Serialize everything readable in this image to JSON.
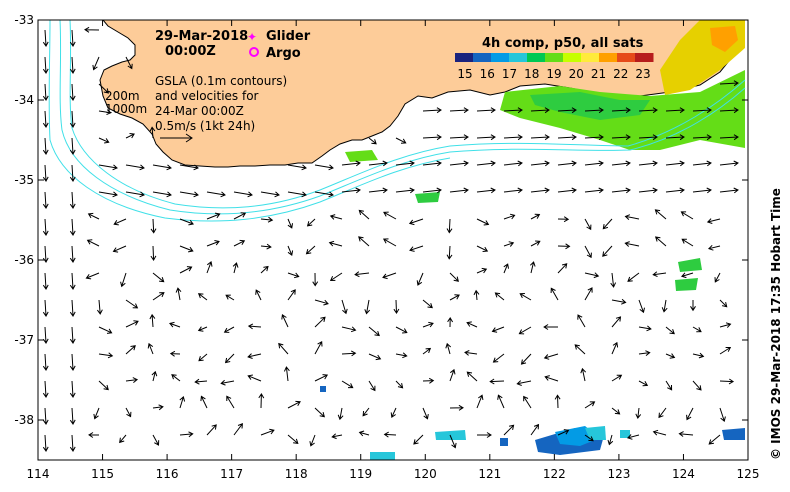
{
  "title": {
    "date": "29-Mar-2018",
    "time": "00:00Z"
  },
  "legend": {
    "glider_label": "Glider",
    "argo_label": "Argo",
    "glider_color": "#ff00ff",
    "argo_color": "#ff00ff"
  },
  "info": {
    "line1": "GSLA (0.1m contours)",
    "line2": "and velocities for",
    "line3": "24-Mar 00:00Z",
    "line4": "0.5m/s (1kt 24h)"
  },
  "depth_labels": {
    "d200": "200m",
    "d1000": "1000m"
  },
  "colorbar": {
    "title": "4h comp, p50, all sats",
    "ticks": [
      "15",
      "16",
      "17",
      "18",
      "19",
      "20",
      "21",
      "22",
      "23"
    ],
    "colors": [
      "#1a237e",
      "#1565c0",
      "#039be5",
      "#26c6da",
      "#00c853",
      "#64dd17",
      "#c6ff00",
      "#ffeb3b",
      "#ffa000",
      "#e64a19",
      "#b71c1c"
    ]
  },
  "side_label": "© IMOS 29-Mar-2018 17:35 Hobart Time",
  "colors": {
    "land": "#fdcc99",
    "contour": "#40e0e8",
    "arrow": "#000000"
  },
  "chart_data": {
    "type": "map",
    "x_ticks": [
      "114",
      "115",
      "116",
      "117",
      "118",
      "119",
      "120",
      "121",
      "122",
      "123",
      "124",
      "125"
    ],
    "y_ticks": [
      "-33",
      "-34",
      "-35",
      "-36",
      "-37",
      "-38"
    ],
    "xlim": [
      114,
      125
    ],
    "ylim": [
      -38.5,
      -33
    ]
  }
}
